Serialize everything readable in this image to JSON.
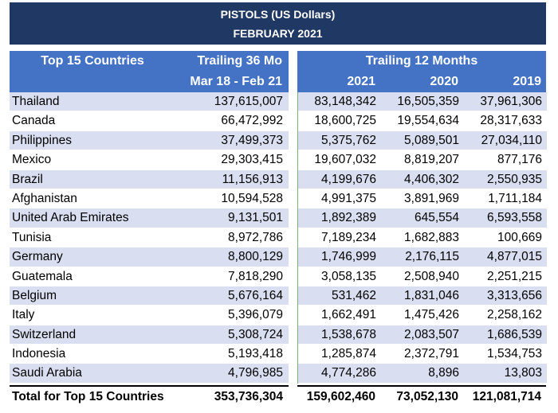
{
  "title": {
    "line1": "PISTOLS (US Dollars)",
    "line2": "FEBRUARY 2021"
  },
  "header": {
    "countries": "Top 15 Countries",
    "trailing36": "Trailing 36 Mo",
    "period36": "Mar 18 - Feb 21",
    "trailing12": "Trailing 12 Months",
    "years": [
      "2021",
      "2020",
      "2019"
    ]
  },
  "colors": {
    "title_bg": "#1f3864",
    "header_bg": "#4472c4",
    "stripe_bg": "#d9dff0"
  },
  "rows": [
    {
      "country": "Thailand",
      "t36": "137,615,007",
      "y2021": "83,148,342",
      "y2020": "16,505,359",
      "y2019": "37,961,306"
    },
    {
      "country": "Canada",
      "t36": "66,472,992",
      "y2021": "18,600,725",
      "y2020": "19,554,634",
      "y2019": "28,317,633"
    },
    {
      "country": "Philippines",
      "t36": "37,499,373",
      "y2021": "5,375,762",
      "y2020": "5,089,501",
      "y2019": "27,034,110"
    },
    {
      "country": "Mexico",
      "t36": "29,303,415",
      "y2021": "19,607,032",
      "y2020": "8,819,207",
      "y2019": "877,176"
    },
    {
      "country": "Brazil",
      "t36": "11,156,913",
      "y2021": "4,199,676",
      "y2020": "4,406,302",
      "y2019": "2,550,935"
    },
    {
      "country": "Afghanistan",
      "t36": "10,594,528",
      "y2021": "4,991,375",
      "y2020": "3,891,969",
      "y2019": "1,711,184"
    },
    {
      "country": "United Arab Emirates",
      "t36": "9,131,501",
      "y2021": "1,892,389",
      "y2020": "645,554",
      "y2019": "6,593,558"
    },
    {
      "country": "Tunisia",
      "t36": "8,972,786",
      "y2021": "7,189,234",
      "y2020": "1,682,883",
      "y2019": "100,669"
    },
    {
      "country": "Germany",
      "t36": "8,800,129",
      "y2021": "1,746,999",
      "y2020": "2,176,115",
      "y2019": "4,877,015"
    },
    {
      "country": "Guatemala",
      "t36": "7,818,290",
      "y2021": "3,058,135",
      "y2020": "2,508,940",
      "y2019": "2,251,215"
    },
    {
      "country": "Belgium",
      "t36": "5,676,164",
      "y2021": "531,462",
      "y2020": "1,831,046",
      "y2019": "3,313,656"
    },
    {
      "country": "Italy",
      "t36": "5,396,079",
      "y2021": "1,662,491",
      "y2020": "1,475,426",
      "y2019": "2,258,162"
    },
    {
      "country": "Switzerland",
      "t36": "5,308,724",
      "y2021": "1,538,678",
      "y2020": "2,083,507",
      "y2019": "1,686,539"
    },
    {
      "country": "Indonesia",
      "t36": "5,193,418",
      "y2021": "1,285,874",
      "y2020": "2,372,791",
      "y2019": "1,534,753"
    },
    {
      "country": "Saudi Arabia",
      "t36": "4,796,985",
      "y2021": "4,774,286",
      "y2020": "8,896",
      "y2019": "13,803"
    }
  ],
  "total": {
    "label": "Total for Top 15 Countries",
    "t36": "353,736,304",
    "y2021": "159,602,460",
    "y2020": "73,052,130",
    "y2019": "121,081,714"
  }
}
